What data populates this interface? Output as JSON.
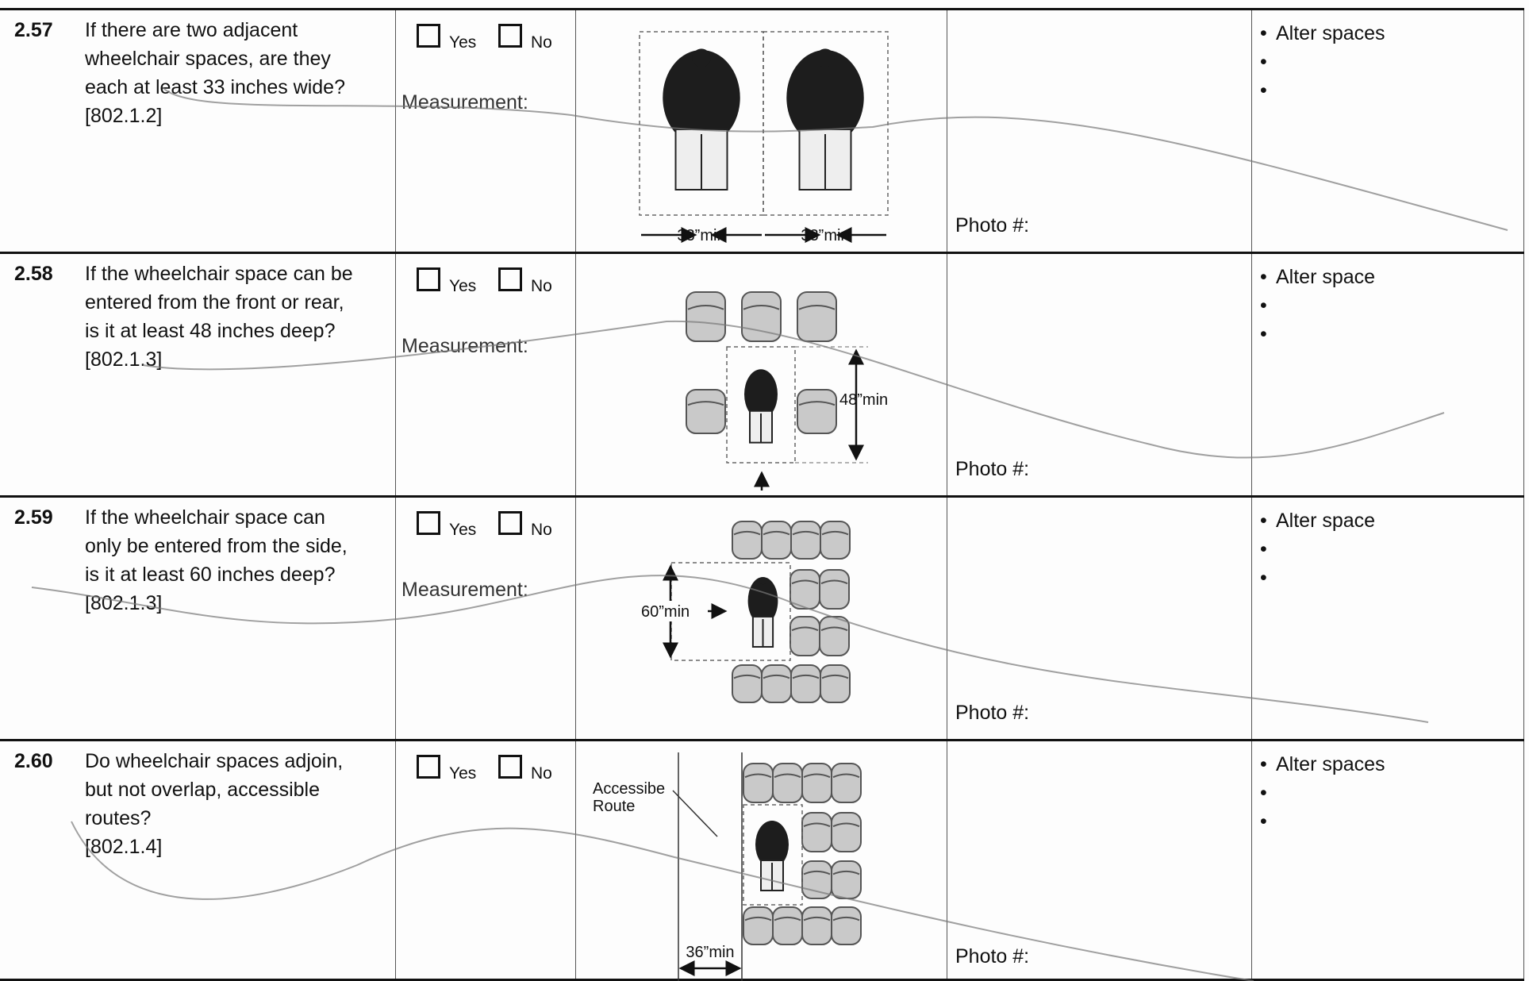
{
  "rows": [
    {
      "number": "2.57",
      "question": [
        "If there are two adjacent",
        "wheelchair spaces, are they",
        "each at least 33 inches wide?",
        "[802.1.2]"
      ],
      "yes": "Yes",
      "no": "No",
      "measurement": "Measurement:",
      "figure_labels": [
        "33”min",
        "33”min"
      ],
      "photo": "Photo #:",
      "action": "Alter spaces"
    },
    {
      "number": "2.58",
      "question": [
        "If the wheelchair space can be",
        "entered from the front or rear,",
        "is it at least 48 inches deep?",
        "[802.1.3]"
      ],
      "yes": "Yes",
      "no": "No",
      "measurement": "Measurement:",
      "figure_labels": [
        "48”min"
      ],
      "photo": "Photo #:",
      "action": "Alter space"
    },
    {
      "number": "2.59",
      "question": [
        "If the wheelchair space can",
        "only be entered from the side,",
        "is it at least 60 inches deep?",
        "[802.1.3]"
      ],
      "yes": "Yes",
      "no": "No",
      "measurement": "Measurement:",
      "figure_labels": [
        "60”min"
      ],
      "photo": "Photo #:",
      "action": "Alter space"
    },
    {
      "number": "2.60",
      "question": [
        "Do wheelchair spaces adjoin,",
        "but not overlap, accessible",
        "routes?",
        "[802.1.4]"
      ],
      "yes": "Yes",
      "no": "No",
      "figure_labels": [
        "Accessibe",
        "Route",
        "36”min"
      ],
      "photo": "Photo #:",
      "action": "Alter spaces"
    }
  ]
}
